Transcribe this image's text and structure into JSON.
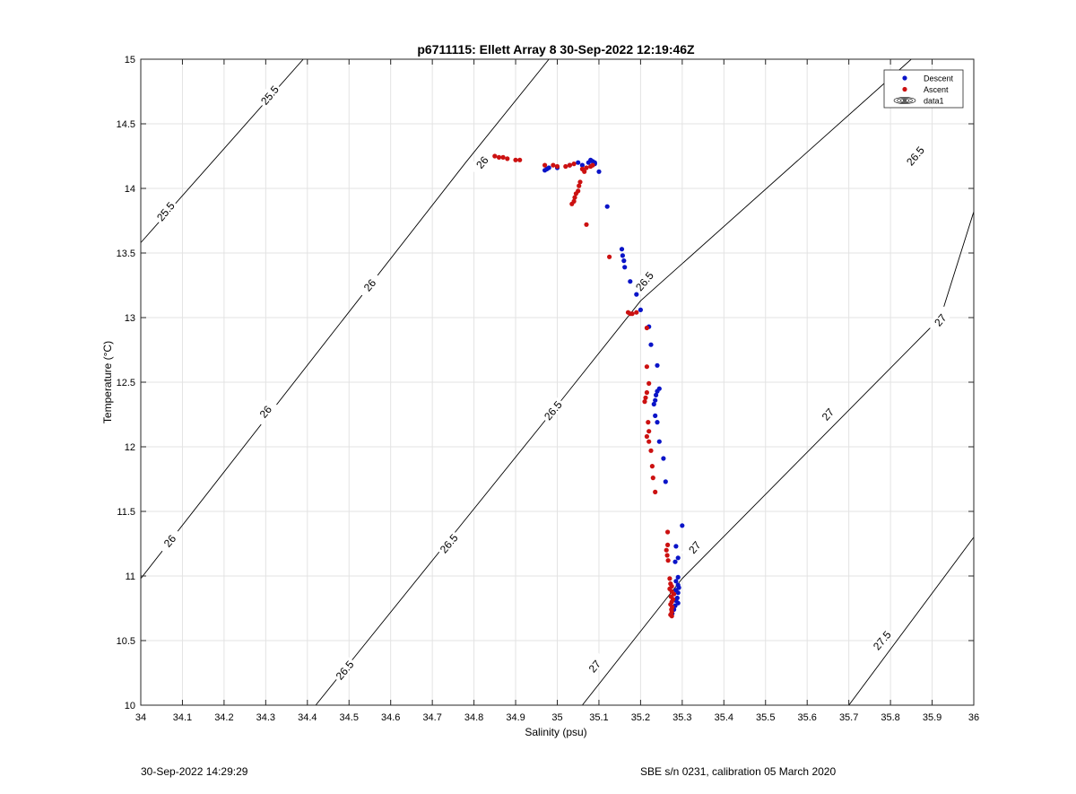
{
  "chart_data": {
    "type": "scatter",
    "title": "p6711115: Ellett Array 8 30-Sep-2022 12:19:46Z",
    "xlabel": "Salinity (psu)",
    "ylabel": "Temperature (°C)",
    "xlim": [
      34,
      36
    ],
    "ylim": [
      10,
      15
    ],
    "xticks": [
      34,
      34.1,
      34.2,
      34.3,
      34.4,
      34.5,
      34.6,
      34.7,
      34.8,
      34.9,
      35,
      35.1,
      35.2,
      35.3,
      35.4,
      35.5,
      35.6,
      35.7,
      35.8,
      35.9,
      36
    ],
    "xtick_labels": [
      "34",
      "34.1",
      "34.2",
      "34.3",
      "34.4",
      "34.5",
      "34.6",
      "34.7",
      "34.8",
      "34.9",
      "35",
      "35.1",
      "35.2",
      "35.3",
      "35.4",
      "35.5",
      "35.6",
      "35.7",
      "35.8",
      "35.9",
      "36"
    ],
    "yticks": [
      10,
      10.5,
      11,
      11.5,
      12,
      12.5,
      13,
      13.5,
      14,
      14.5,
      15
    ],
    "ytick_labels": [
      "10",
      "10.5",
      "11",
      "11.5",
      "12",
      "12.5",
      "13",
      "13.5",
      "14",
      "14.5",
      "15"
    ],
    "grid": true,
    "legend_position": "top-right",
    "legend": [
      {
        "label": "Descent",
        "type": "marker",
        "color": "#0a14c8"
      },
      {
        "label": "Ascent",
        "type": "marker",
        "color": "#cc1111"
      },
      {
        "label": "data1",
        "type": "contour"
      }
    ],
    "density_contours": [
      {
        "label": "25.5",
        "points": [
          [
            34.0,
            13.58
          ],
          [
            34.39,
            15.0
          ]
        ],
        "label_positions": [
          [
            34.31,
            14.72
          ],
          [
            34.06,
            13.82
          ]
        ]
      },
      {
        "label": "26",
        "points": [
          [
            34.0,
            10.98
          ],
          [
            34.78,
            14.2
          ],
          [
            34.98,
            15.0
          ]
        ],
        "label_positions": [
          [
            34.82,
            14.2
          ],
          [
            34.55,
            13.25
          ],
          [
            34.3,
            12.27
          ],
          [
            34.07,
            11.27
          ]
        ]
      },
      {
        "label": "26.5",
        "points": [
          [
            34.42,
            10.0
          ],
          [
            35.0,
            12.32
          ],
          [
            35.2,
            13.13
          ],
          [
            35.85,
            15.0
          ]
        ],
        "label_positions": [
          [
            35.86,
            14.25
          ],
          [
            35.21,
            13.28
          ],
          [
            34.99,
            12.28
          ],
          [
            34.74,
            11.25
          ],
          [
            34.49,
            10.27
          ]
        ]
      },
      {
        "label": "27",
        "points": [
          [
            35.06,
            10.0
          ],
          [
            35.3,
            10.98
          ],
          [
            35.92,
            13.0
          ],
          [
            36.0,
            13.82
          ]
        ],
        "label_positions": [
          [
            35.92,
            12.98
          ],
          [
            35.65,
            12.25
          ],
          [
            35.33,
            11.22
          ],
          [
            35.09,
            10.3
          ]
        ]
      },
      {
        "label": "27.5",
        "points": [
          [
            35.7,
            10.0
          ],
          [
            36.0,
            11.3
          ]
        ],
        "label_positions": [
          [
            35.78,
            10.5
          ]
        ]
      }
    ],
    "series": [
      {
        "name": "Descent",
        "color": "#0a14c8",
        "points": [
          [
            34.97,
            14.14
          ],
          [
            34.975,
            14.15
          ],
          [
            34.98,
            14.16
          ],
          [
            35.0,
            14.16
          ],
          [
            35.03,
            14.18
          ],
          [
            35.05,
            14.2
          ],
          [
            35.06,
            14.18
          ],
          [
            35.075,
            14.2
          ],
          [
            35.08,
            14.22
          ],
          [
            35.085,
            14.21
          ],
          [
            35.09,
            14.2
          ],
          [
            35.09,
            14.19
          ],
          [
            35.1,
            14.13
          ],
          [
            35.12,
            13.86
          ],
          [
            35.155,
            13.53
          ],
          [
            35.157,
            13.48
          ],
          [
            35.16,
            13.44
          ],
          [
            35.162,
            13.39
          ],
          [
            35.175,
            13.28
          ],
          [
            35.19,
            13.18
          ],
          [
            35.2,
            13.06
          ],
          [
            35.22,
            12.93
          ],
          [
            35.225,
            12.79
          ],
          [
            35.24,
            12.63
          ],
          [
            35.245,
            12.45
          ],
          [
            35.24,
            12.43
          ],
          [
            35.237,
            12.4
          ],
          [
            35.235,
            12.36
          ],
          [
            35.232,
            12.33
          ],
          [
            35.235,
            12.24
          ],
          [
            35.24,
            12.19
          ],
          [
            35.245,
            12.04
          ],
          [
            35.255,
            11.91
          ],
          [
            35.26,
            11.73
          ],
          [
            35.3,
            11.39
          ],
          [
            35.285,
            11.23
          ],
          [
            35.29,
            11.14
          ],
          [
            35.283,
            11.11
          ],
          [
            35.29,
            10.99
          ],
          [
            35.285,
            10.96
          ],
          [
            35.29,
            10.93
          ],
          [
            35.292,
            10.91
          ],
          [
            35.285,
            10.89
          ],
          [
            35.29,
            10.87
          ],
          [
            35.288,
            10.83
          ],
          [
            35.285,
            10.81
          ],
          [
            35.29,
            10.79
          ],
          [
            35.283,
            10.77
          ],
          [
            35.28,
            10.74
          ],
          [
            35.276,
            10.71
          ]
        ]
      },
      {
        "name": "Ascent",
        "color": "#cc1111",
        "points": [
          [
            34.85,
            14.25
          ],
          [
            34.86,
            14.24
          ],
          [
            34.87,
            14.24
          ],
          [
            34.88,
            14.23
          ],
          [
            34.9,
            14.22
          ],
          [
            34.91,
            14.22
          ],
          [
            34.97,
            14.18
          ],
          [
            34.99,
            14.18
          ],
          [
            35.0,
            14.17
          ],
          [
            35.02,
            14.17
          ],
          [
            35.03,
            14.18
          ],
          [
            35.04,
            14.19
          ],
          [
            35.06,
            14.15
          ],
          [
            35.07,
            14.16
          ],
          [
            35.08,
            14.17
          ],
          [
            35.085,
            14.18
          ],
          [
            35.065,
            14.13
          ],
          [
            35.055,
            14.05
          ],
          [
            35.052,
            14.02
          ],
          [
            35.05,
            13.98
          ],
          [
            35.045,
            13.96
          ],
          [
            35.042,
            13.93
          ],
          [
            35.04,
            13.9
          ],
          [
            35.035,
            13.88
          ],
          [
            35.07,
            13.72
          ],
          [
            35.125,
            13.47
          ],
          [
            35.17,
            13.04
          ],
          [
            35.175,
            13.03
          ],
          [
            35.18,
            13.03
          ],
          [
            35.19,
            13.04
          ],
          [
            35.215,
            12.92
          ],
          [
            35.215,
            12.62
          ],
          [
            35.22,
            12.49
          ],
          [
            35.215,
            12.42
          ],
          [
            35.212,
            12.38
          ],
          [
            35.21,
            12.35
          ],
          [
            35.218,
            12.19
          ],
          [
            35.22,
            12.12
          ],
          [
            35.215,
            12.08
          ],
          [
            35.22,
            12.04
          ],
          [
            35.225,
            11.97
          ],
          [
            35.228,
            11.85
          ],
          [
            35.23,
            11.76
          ],
          [
            35.235,
            11.65
          ],
          [
            35.265,
            11.34
          ],
          [
            35.265,
            11.24
          ],
          [
            35.262,
            11.2
          ],
          [
            35.264,
            11.16
          ],
          [
            35.266,
            11.12
          ],
          [
            35.27,
            10.98
          ],
          [
            35.272,
            10.94
          ],
          [
            35.275,
            10.92
          ],
          [
            35.27,
            10.9
          ],
          [
            35.275,
            10.88
          ],
          [
            35.28,
            10.86
          ],
          [
            35.273,
            10.84
          ],
          [
            35.278,
            10.82
          ],
          [
            35.275,
            10.8
          ],
          [
            35.272,
            10.78
          ],
          [
            35.276,
            10.76
          ],
          [
            35.274,
            10.74
          ],
          [
            35.275,
            10.72
          ],
          [
            35.272,
            10.7
          ],
          [
            35.275,
            10.69
          ]
        ]
      }
    ]
  },
  "footer": {
    "left": "30-Sep-2022 14:29:29",
    "right": "SBE s/n 0231, calibration 05 March 2020"
  }
}
